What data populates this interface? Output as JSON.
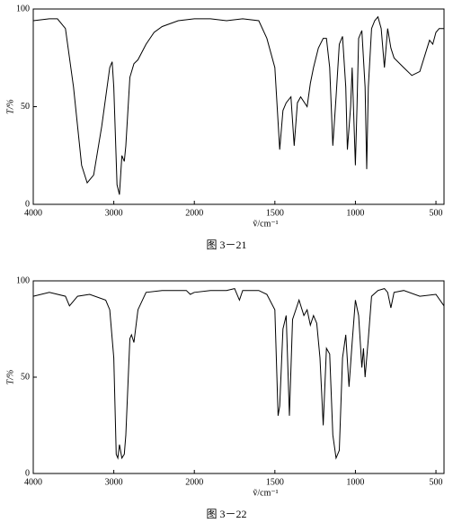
{
  "chart_data": [
    {
      "type": "line",
      "caption": "图 3－21",
      "x_label": "ṽ/cm⁻¹",
      "y_label": "T/%",
      "color": "#000000",
      "xlim": [
        4000,
        450
      ],
      "x_scale_break": 2000,
      "ylim": [
        0,
        100
      ],
      "xticks": [
        4000,
        3000,
        2000,
        1500,
        1000,
        500
      ],
      "yticks": [
        0,
        50,
        100
      ],
      "x": [
        4000,
        3800,
        3700,
        3600,
        3500,
        3400,
        3330,
        3250,
        3150,
        3050,
        3020,
        3000,
        2960,
        2930,
        2900,
        2870,
        2850,
        2800,
        2750,
        2700,
        2600,
        2500,
        2400,
        2200,
        2000,
        1900,
        1800,
        1700,
        1600,
        1550,
        1500,
        1470,
        1450,
        1430,
        1400,
        1380,
        1360,
        1340,
        1300,
        1280,
        1260,
        1230,
        1200,
        1180,
        1160,
        1140,
        1120,
        1100,
        1080,
        1060,
        1050,
        1030,
        1020,
        1000,
        990,
        980,
        960,
        940,
        930,
        920,
        900,
        880,
        860,
        840,
        820,
        800,
        780,
        760,
        700,
        650,
        600,
        540,
        520,
        500,
        480,
        450
      ],
      "values": [
        94,
        95,
        95,
        90,
        60,
        20,
        11,
        15,
        40,
        70,
        73,
        60,
        10,
        5,
        25,
        22,
        30,
        65,
        72,
        74,
        82,
        88,
        91,
        94,
        95,
        95,
        94,
        95,
        94,
        85,
        70,
        28,
        48,
        52,
        55,
        30,
        52,
        55,
        50,
        62,
        70,
        80,
        85,
        85,
        70,
        30,
        55,
        82,
        86,
        60,
        28,
        50,
        70,
        20,
        50,
        85,
        89,
        60,
        18,
        60,
        90,
        94,
        96,
        90,
        70,
        90,
        80,
        75,
        70,
        66,
        68,
        84,
        82,
        88,
        90,
        90
      ]
    },
    {
      "type": "line",
      "caption": "图 3－22",
      "x_label": "ṽ/cm⁻¹",
      "y_label": "T/%",
      "color": "#000000",
      "xlim": [
        4000,
        450
      ],
      "x_scale_break": 2000,
      "ylim": [
        0,
        100
      ],
      "xticks": [
        4000,
        3000,
        2000,
        1500,
        1000,
        500
      ],
      "yticks": [
        0,
        50,
        100
      ],
      "x": [
        4000,
        3800,
        3600,
        3550,
        3450,
        3300,
        3100,
        3050,
        3000,
        2970,
        2950,
        2930,
        2900,
        2870,
        2850,
        2800,
        2780,
        2750,
        2700,
        2600,
        2400,
        2200,
        2100,
        2050,
        2000,
        1900,
        1800,
        1750,
        1720,
        1700,
        1600,
        1550,
        1500,
        1480,
        1470,
        1450,
        1430,
        1410,
        1390,
        1370,
        1350,
        1320,
        1300,
        1280,
        1260,
        1240,
        1220,
        1200,
        1180,
        1160,
        1140,
        1120,
        1100,
        1080,
        1060,
        1040,
        1020,
        1000,
        980,
        960,
        950,
        940,
        920,
        900,
        860,
        820,
        800,
        780,
        760,
        700,
        600,
        500,
        450
      ],
      "values": [
        92,
        94,
        92,
        87,
        92,
        93,
        90,
        85,
        60,
        10,
        8,
        15,
        8,
        10,
        20,
        70,
        72,
        68,
        85,
        94,
        95,
        95,
        95,
        93,
        94,
        95,
        95,
        96,
        90,
        95,
        95,
        93,
        85,
        30,
        35,
        75,
        82,
        30,
        80,
        85,
        90,
        82,
        85,
        77,
        82,
        78,
        60,
        25,
        65,
        62,
        20,
        8,
        12,
        60,
        72,
        45,
        68,
        90,
        82,
        55,
        65,
        50,
        70,
        92,
        95,
        96,
        94,
        86,
        94,
        95,
        92,
        93,
        87
      ]
    }
  ]
}
